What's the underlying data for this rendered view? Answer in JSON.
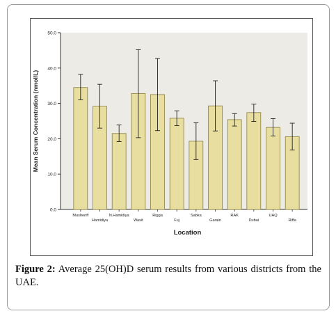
{
  "caption": {
    "label": "Figure 2:",
    "text": "Average 25(OH)D serum results from various districts from the UAE."
  },
  "colors": {
    "bar_fill": "#e8dea0",
    "bar_stroke": "#8a7d3a",
    "plot_bg": "#ecebe6",
    "error_bar": "#222222"
  },
  "chart_data": {
    "type": "bar",
    "xlabel": "Location",
    "ylabel": "Mean Serum Concentration (nmol/L)",
    "ylim": [
      0,
      50
    ],
    "yticks": [
      "0.0",
      "10.0",
      "20.0",
      "30.0",
      "40.0",
      "50.0"
    ],
    "ytick_values": [
      0,
      10,
      20,
      30,
      40,
      50
    ],
    "grid": false,
    "categories": [
      "Musheriff",
      "Hamidiya",
      "N.Hamidiya",
      "Wasit",
      "Rigga",
      "Fuj",
      "Sabka",
      "Garain",
      "RAK",
      "Dubai",
      "UAQ",
      "Riffa"
    ],
    "values": [
      34.5,
      29.2,
      21.5,
      32.8,
      32.5,
      25.8,
      19.3,
      29.3,
      25.4,
      27.4,
      23.2,
      20.6
    ],
    "error_low": [
      31.0,
      23.0,
      19.2,
      20.3,
      22.3,
      23.7,
      14.1,
      22.2,
      23.6,
      24.9,
      20.8,
      16.8
    ],
    "error_high": [
      38.2,
      35.4,
      23.9,
      45.2,
      42.7,
      27.9,
      24.5,
      36.4,
      27.1,
      29.8,
      25.7,
      24.4
    ]
  }
}
